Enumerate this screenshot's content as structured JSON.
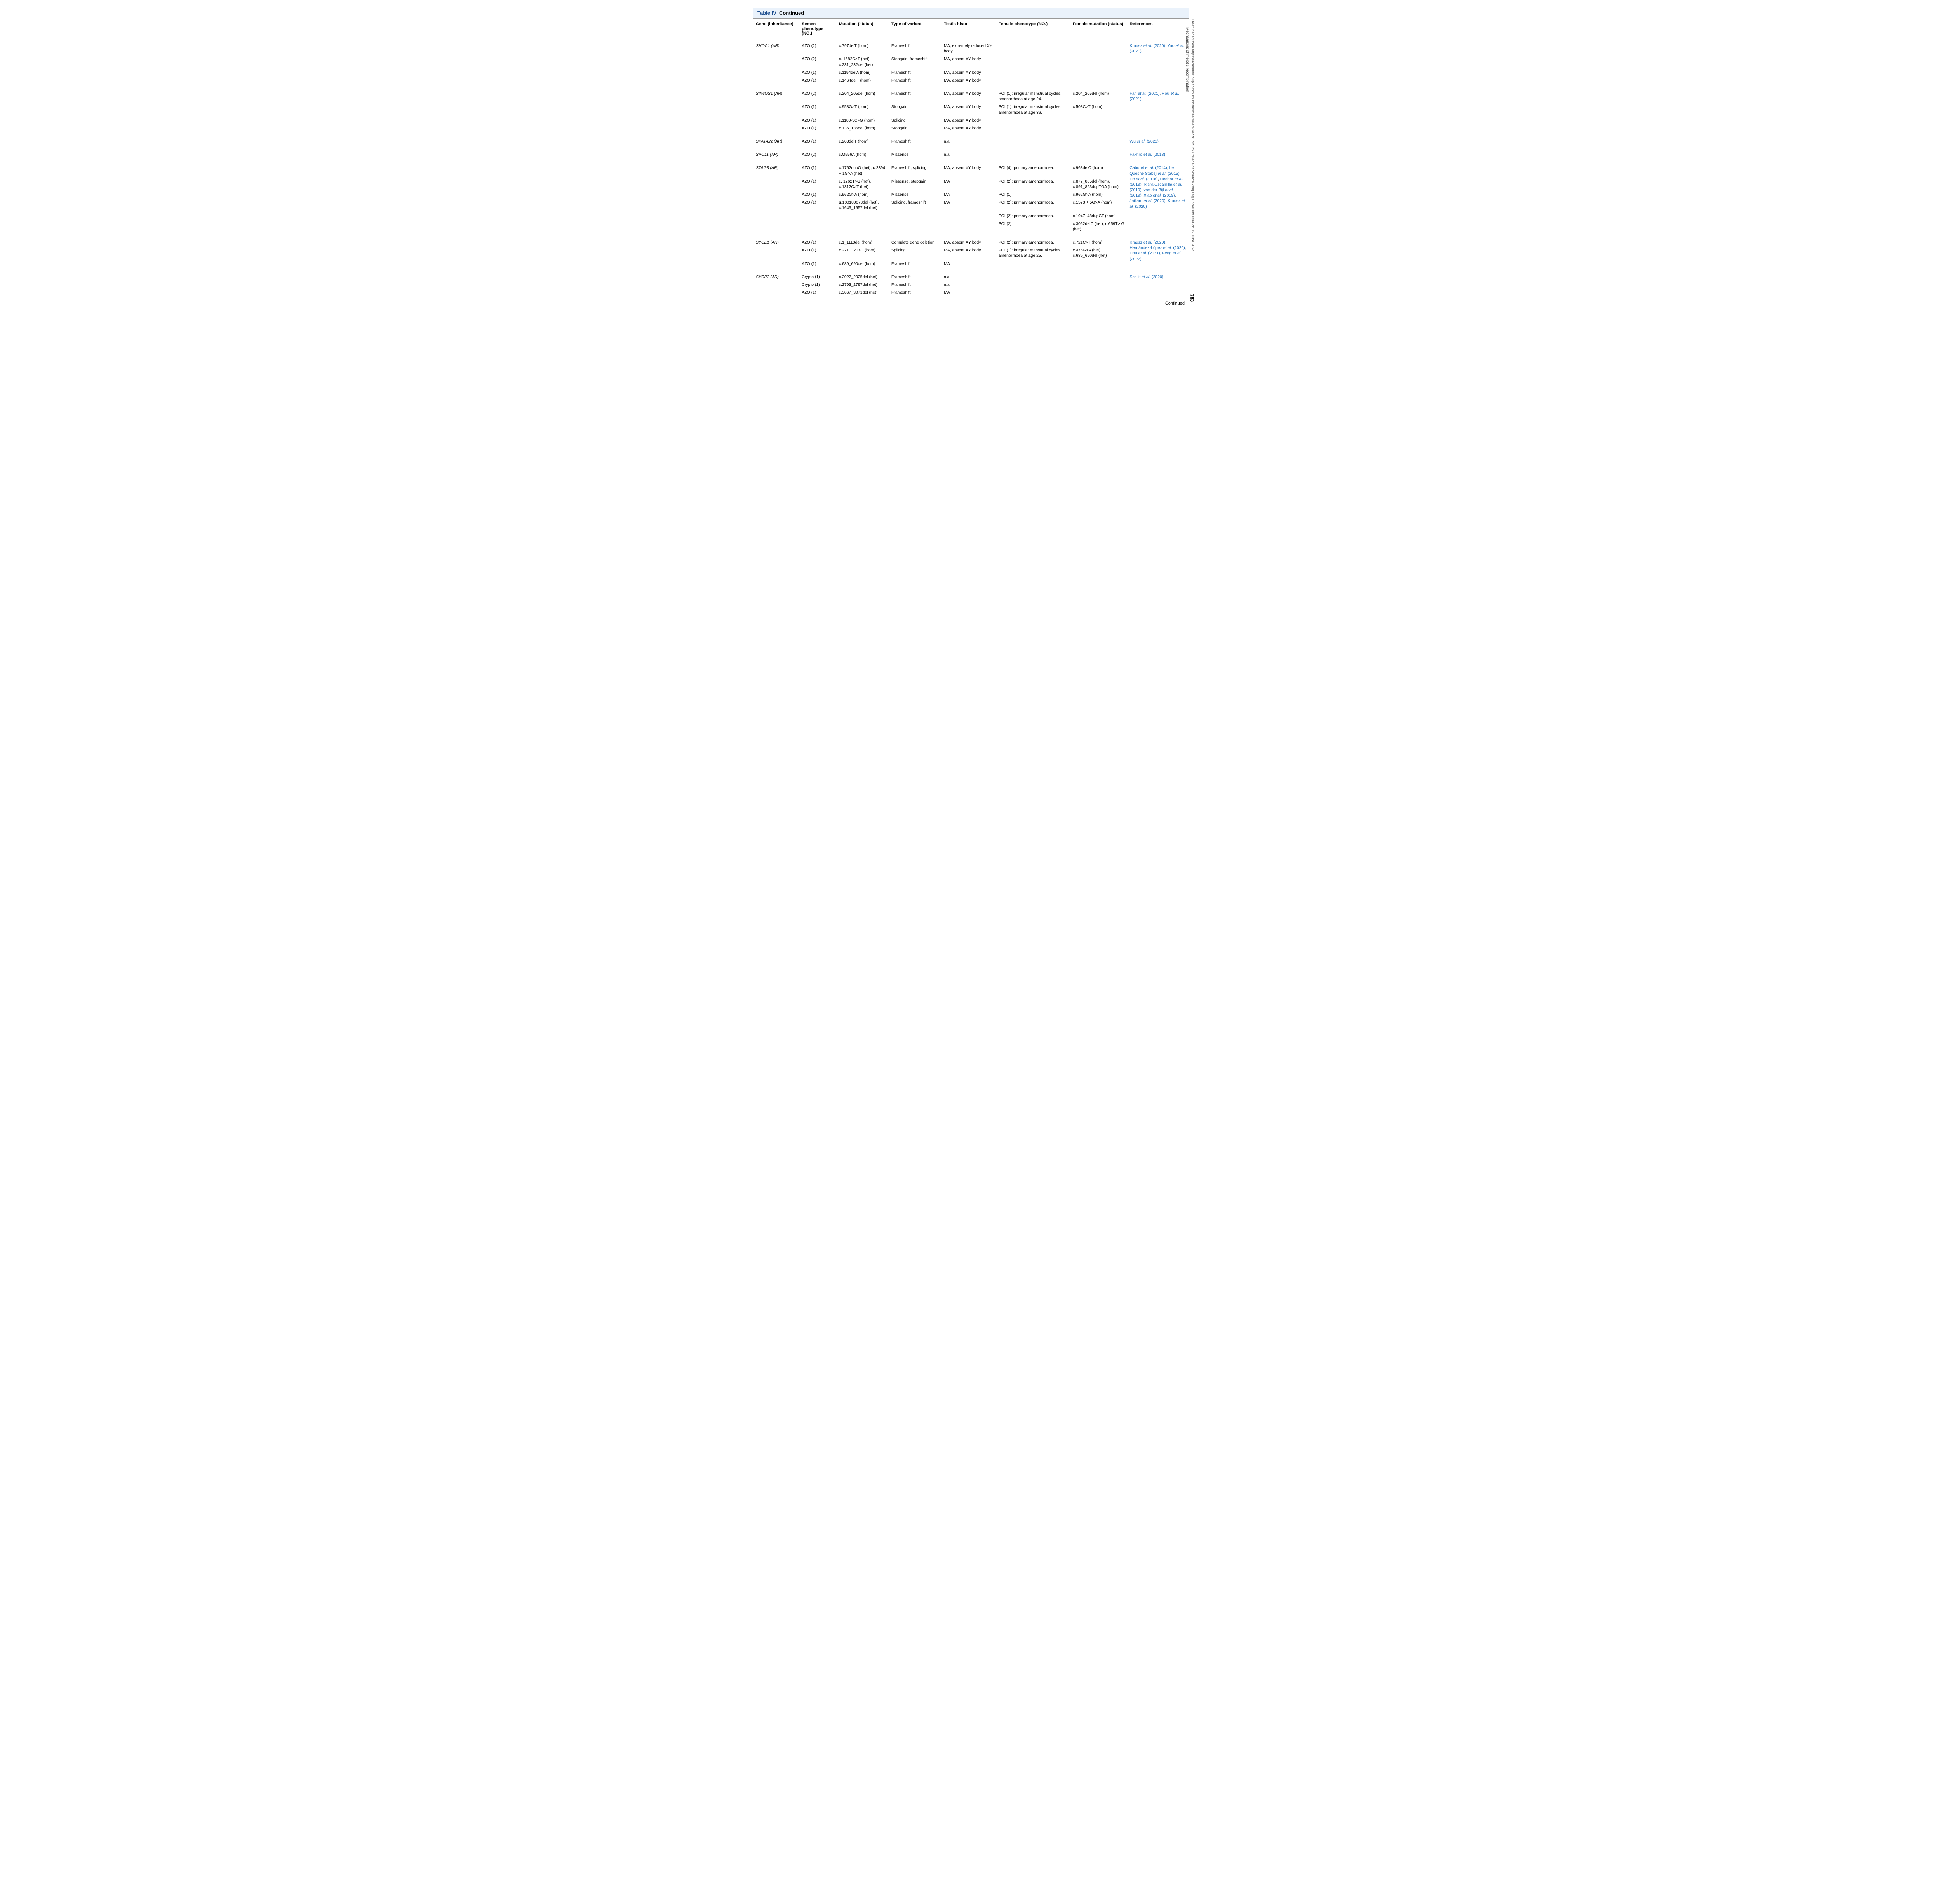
{
  "header": {
    "table_label": "Table IV",
    "continued": "Continued"
  },
  "columns": {
    "gene": "Gene (inheritance)",
    "semen": "Semen phenotype (NO.)",
    "mutation": "Mutation (status)",
    "variant": "Type of variant",
    "histo": "Testis histo",
    "female_pheno": "Female phenotype (NO.)",
    "female_mut": "Female mutation (status)",
    "refs": "References"
  },
  "rows": {
    "shoc1": {
      "gene": "SHOC1 (AR)",
      "r1": {
        "semen": "AZO (2)",
        "mut": "c.797delT (hom)",
        "variant": "Frameshift",
        "histo": "MA, extremely reduced XY body"
      },
      "r2": {
        "semen": "AZO (2)",
        "mut": "c. 1582C>T (het), c.231_232del (het)",
        "variant": "Stopgain, frameshift",
        "histo": "MA, absent XY body"
      },
      "r3": {
        "semen": "AZO (1)",
        "mut": "c.1194delA (hom)",
        "variant": "Frameshift",
        "histo": "MA, absent XY body"
      },
      "r4": {
        "semen": "AZO (1)",
        "mut": "c.1464delT (hom)",
        "variant": "Frameshift",
        "histo": "MA, absent XY body"
      },
      "refs": {
        "a1": "Krausz",
        "y1": " (2020)",
        "a2": "Yao",
        "y2": " (2021)"
      }
    },
    "six6os1": {
      "gene": "SIX6OS1 (AR)",
      "r1": {
        "semen": "AZO (2)",
        "mut": "c.204_205del (hom)",
        "variant": "Frameshift",
        "histo": "MA, absent XY body",
        "fpheno": "POI (1): irregular menstrual cycles, amenorrhoea at age 24.",
        "fmut": "c.204_205del (hom)"
      },
      "r2": {
        "semen": "AZO (1)",
        "mut": "c.958G>T (hom)",
        "variant": "Stopgain",
        "histo": "MA, absent XY body",
        "fpheno": "POI (1): irregular menstrual cycles, amenorrhoea at age 36.",
        "fmut": "c.508C>T (hom)"
      },
      "r3": {
        "semen": "AZO (1)",
        "mut": "c.1180-3C>G (hom)",
        "variant": "Splicing",
        "histo": "MA, absent XY body"
      },
      "r4": {
        "semen": "AZO (1)",
        "mut": "c.135_136del (hom)",
        "variant": "Stopgain",
        "histo": "MA, absent XY body"
      },
      "refs": {
        "a1": "Fan",
        "y1": " (2021)",
        "a2": "Hou",
        "y2": " (2021)"
      }
    },
    "spata22": {
      "gene": "SPATA22 (AR)",
      "r1": {
        "semen": "AZO (1)",
        "mut": "c.203delT (hom)",
        "variant": "Frameshift",
        "histo": "n.a."
      },
      "refs": {
        "a1": "Wu",
        "y1": " (2021)"
      }
    },
    "spo11": {
      "gene": "SPO11 (AR)",
      "r1": {
        "semen": "AZO (2)",
        "mut": "c.G556A (hom)",
        "variant": "Missense",
        "histo": "n.a."
      },
      "refs": {
        "a1": "Fakhro",
        "y1": " (2018)"
      }
    },
    "stag3": {
      "gene": "STAG3 (AR)",
      "r1": {
        "semen": "AZO (1)",
        "mut": "c.1762dupG (het), c.2394 + 1G>A (het)",
        "variant": "Frameshift, splicing",
        "histo": "MA, absent XY body",
        "fpheno": "POI (4): primary amenorrhoea.",
        "fmut": "c.968delC (hom)"
      },
      "r2": {
        "semen": "AZO (1)",
        "mut": "c. 1262T>G (het), c.1312C>T (het)",
        "variant": "Missense, stopgain",
        "histo": "MA",
        "fpheno": "POI (2): primary amenorrhoea.",
        "fmut": "c.877_885del (hom), c.891_893dupTGA (hom)"
      },
      "r3": {
        "semen": "AZO (1)",
        "mut": "c.962G>A (hom)",
        "variant": "Missense",
        "histo": "MA",
        "fpheno": "POI (1)",
        "fmut": "c.962G>A (hom)"
      },
      "r4": {
        "semen": "AZO (1)",
        "mut": "g.100180673del (het), c.1645_1657del (het)",
        "variant": "Splicing, frameshift",
        "histo": "MA",
        "fpheno": "POI (2): primary amenorrhoea.",
        "fmut": "c.1573 + 5G>A (hom)"
      },
      "r5": {
        "fpheno": "POI (2): primary amenorrhoea.",
        "fmut": "c.1947_48dupCT (hom)"
      },
      "r6": {
        "fpheno": "POI (2)",
        "fmut": "c.3052delC (het), c.659T> G (het)"
      },
      "refs": {
        "a1": "Caburet",
        "y1": " (2014)",
        "a2": "Le Quesne Stabej",
        "a3": "",
        "y3": " (2015)",
        "a4": "He",
        "y4": " (2018)",
        "a5": "Heddar",
        "y5": " (2019)",
        "a6": "Riera-Escamilla",
        "y6": " (2019)",
        "a7": "van der Bijl",
        "y7": " (2019)",
        "a8": "Xiao",
        "y8": " (2019)",
        "a9": "Jaillard",
        "y9": " (2020)",
        "a10": "Krausz",
        "y10": " (2020)"
      }
    },
    "syce1": {
      "gene": "SYCE1 (AR)",
      "r1": {
        "semen": "AZO (1)",
        "mut": "c.1_1113del (hom)",
        "variant": "Complete gene deletion",
        "histo": "MA, absent XY body",
        "fpheno": "POI (2): primary amenorrhoea.",
        "fmut": "c.721C>T (hom)"
      },
      "r2": {
        "semen": "AZO (1)",
        "mut": "c.271 + 2T>C (hom)",
        "variant": "Splicing",
        "histo": "MA, absent XY body",
        "fpheno": "POI (1): irregular menstrual cycles, amenorrhoea at age 25.",
        "fmut": "c.475G>A (het), c.689_690del (het)"
      },
      "r3": {
        "semen": "AZO (1)",
        "mut": "c.689_690del (hom)",
        "variant": "Frameshift",
        "histo": "MA"
      },
      "refs": {
        "a1": "Krausz",
        "y1": " (2020)",
        "a2": "Hernández-López",
        "y2": " (2020)",
        "a3": "Hou",
        "y3": " (2021)",
        "a4": "Feng",
        "y4": " (2022)"
      }
    },
    "sycp2": {
      "gene": "SYCP2 (AD)",
      "r1": {
        "semen": "Crypto (1)",
        "mut": "c.2022_2025del (het)",
        "variant": "Frameshift",
        "histo": "n.a."
      },
      "r2": {
        "semen": "Crypto (1)",
        "mut": "c.2793_2797del (het)",
        "variant": "Frameshift",
        "histo": "n.a."
      },
      "r3": {
        "semen": "AZO (1)",
        "mut": "c.3067_3071del (het)",
        "variant": "Frameshift",
        "histo": "MA"
      },
      "refs": {
        "a1": "Schilit",
        "y1": " (2020)"
      }
    }
  },
  "footer": {
    "continued": "Continued"
  },
  "side": {
    "section": "Mechanisms of meiotic recombination",
    "download": "Downloaded from https://academic.oup.com/humupd/article/28/6/763/6591785 by College of Science Zhejiang University user on 12 June 2024",
    "page": "783"
  }
}
